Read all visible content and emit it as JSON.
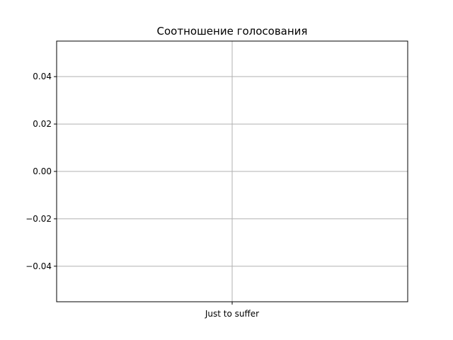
{
  "chart_data": {
    "type": "bar",
    "title": "Соотношение голосования",
    "xlabel": "",
    "ylabel": "",
    "categories": [
      "Just to suffer"
    ],
    "values": [
      0
    ],
    "ylim": [
      -0.055,
      0.055
    ],
    "yticks": [
      0.04,
      0.02,
      0.0,
      -0.02,
      -0.04
    ],
    "ytick_labels": [
      "0.04",
      "0.02",
      "0.00",
      "−0.02",
      "−0.04"
    ],
    "grid": true
  }
}
